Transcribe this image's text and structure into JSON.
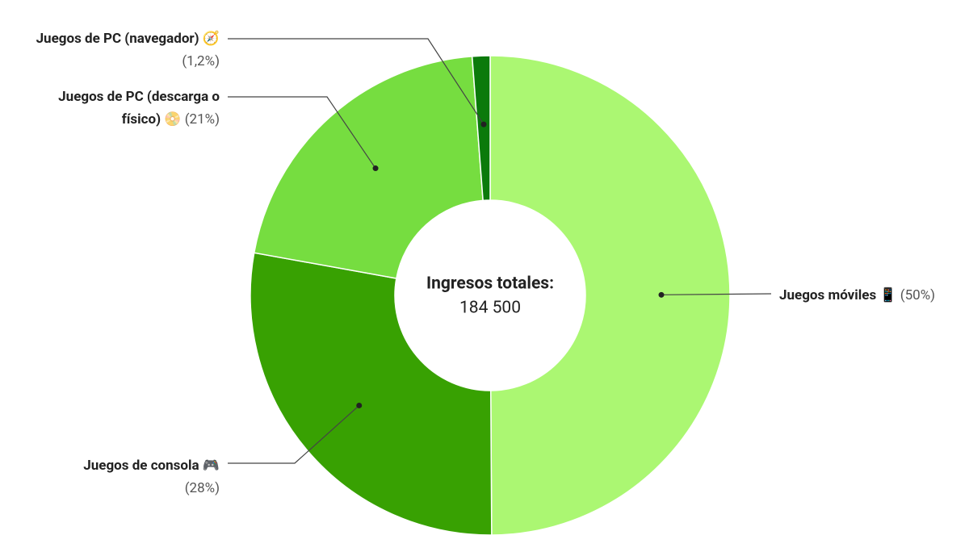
{
  "chart_data": {
    "type": "donut",
    "center_label": "Ingresos totales:",
    "center_value": "184 500",
    "categories": [
      "Juegos móviles 📱",
      "Juegos de consola 🎮",
      "Juegos de PC (descarga o físico) 📀",
      "Juegos de PC (navegador) 🧭"
    ],
    "values": [
      50,
      28,
      21,
      1.2
    ],
    "value_labels": [
      "(50%)",
      "(28%)",
      "(21%)",
      "(1,2%)"
    ],
    "colors": [
      "#abf772",
      "#38a102",
      "#76dd40",
      "#0b7a0b"
    ]
  }
}
